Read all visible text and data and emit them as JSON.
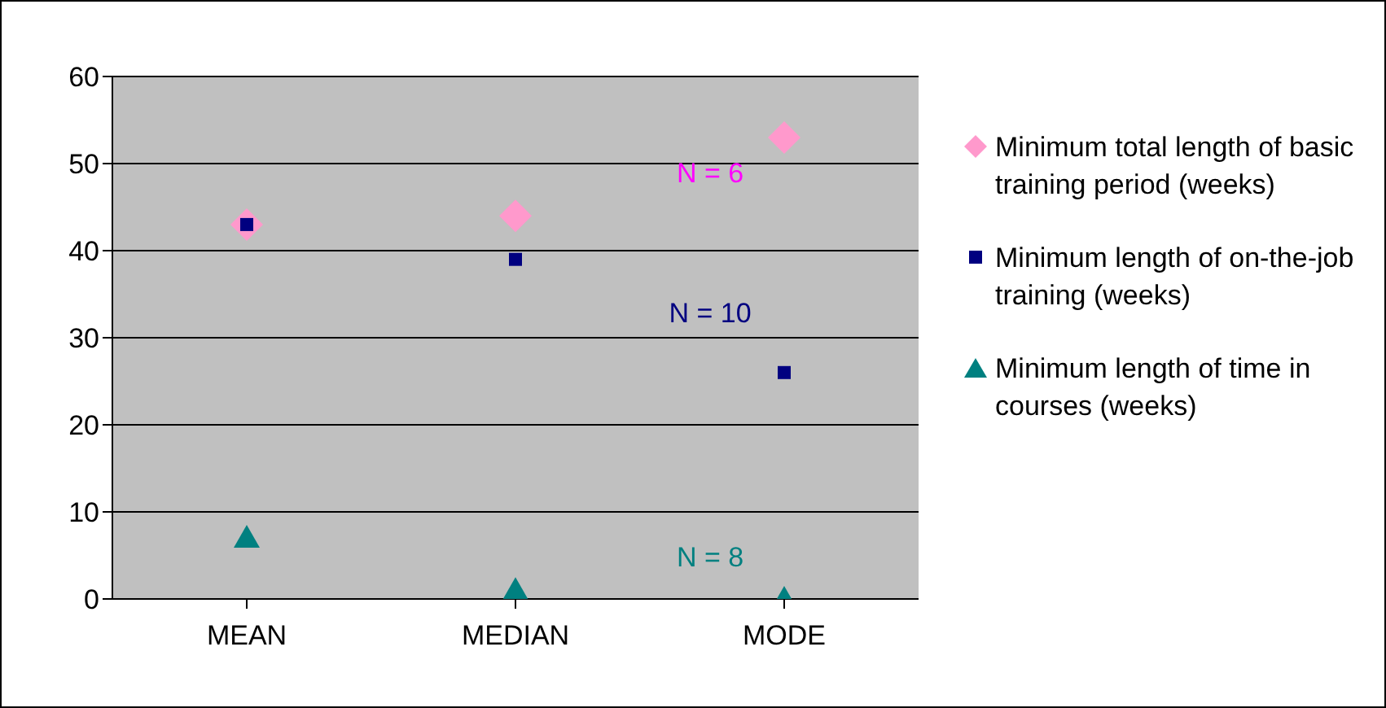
{
  "chart_data": {
    "type": "scatter",
    "categories": [
      "MEAN",
      "MEDIAN",
      "MODE"
    ],
    "series": [
      {
        "name": "Minimum total length of basic training period (weeks)",
        "color": "#ff99cc",
        "marker": "diamond",
        "values": [
          43,
          44,
          53
        ]
      },
      {
        "name": "Minimum length of on-the-job training (weeks)",
        "color": "#000080",
        "marker": "square",
        "values": [
          43,
          39,
          26
        ]
      },
      {
        "name": "Minimum length of time in courses (weeks)",
        "color": "#008080",
        "marker": "triangle",
        "values": [
          7,
          1,
          0
        ]
      }
    ],
    "annotations": [
      "N = 6",
      "N = 10",
      "N = 8"
    ],
    "ylim": [
      0,
      60
    ],
    "yticks": [
      0,
      10,
      20,
      30,
      40,
      50,
      60
    ],
    "grid": "y",
    "legend": "right"
  }
}
